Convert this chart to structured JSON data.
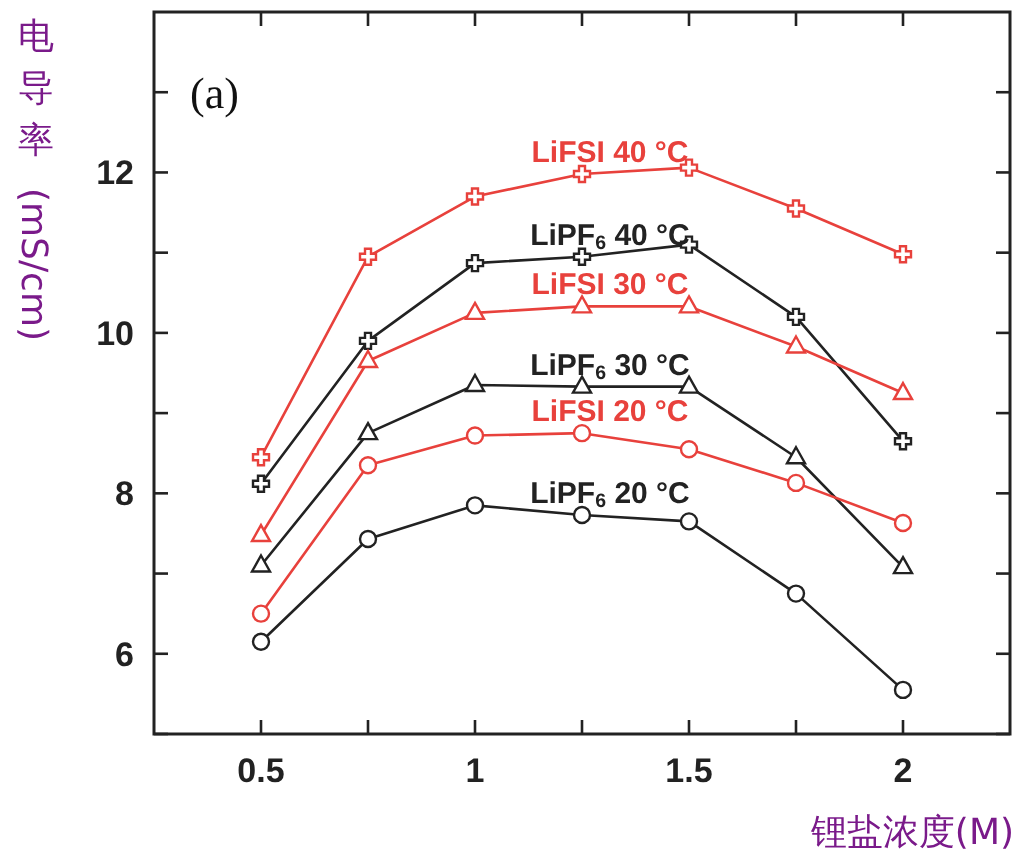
{
  "chart_data": {
    "type": "line",
    "xlabel": "锂盐浓度(M)",
    "ylabel": "电导率(mS/cm)",
    "annotations": [
      "(a)"
    ],
    "x": [
      0.5,
      0.75,
      1,
      1.25,
      1.5,
      1.75,
      2
    ],
    "xlim": [
      0.25,
      2.25
    ],
    "ylim": [
      5,
      14
    ],
    "xticks": [
      0.5,
      {
        "value": 0.75,
        "label": null
      },
      1,
      {
        "value": 1.25,
        "label": null
      },
      1.5,
      {
        "value": 1.75,
        "label": null
      },
      2
    ],
    "yticks": [
      {
        "value": 5,
        "label": null
      },
      6,
      {
        "value": 7,
        "label": null
      },
      8,
      {
        "value": 9,
        "label": null
      },
      10,
      {
        "value": 11,
        "label": null
      },
      12,
      {
        "value": 13,
        "label": null
      }
    ],
    "grid": false,
    "legend": false,
    "line_style": "solid",
    "series": [
      {
        "name": "LiFSI 40 °C",
        "color": "#e8413c",
        "marker": "cross",
        "values": [
          8.45,
          10.95,
          11.7,
          11.98,
          12.06,
          11.55,
          10.98
        ]
      },
      {
        "name": "LiPF$_{6}$ 40 °C",
        "color": "#222222",
        "marker": "cross",
        "values": [
          8.12,
          9.9,
          10.87,
          10.95,
          11.1,
          10.2,
          8.65
        ]
      },
      {
        "name": "LiFSI 30 °C",
        "color": "#e8413c",
        "marker": "triangle",
        "values": [
          7.48,
          9.65,
          10.25,
          10.33,
          10.33,
          9.83,
          9.25
        ]
      },
      {
        "name": "LiPF$_{6}$ 30 °C",
        "color": "#222222",
        "marker": "triangle",
        "values": [
          7.1,
          8.75,
          9.35,
          9.33,
          9.33,
          8.45,
          7.08
        ]
      },
      {
        "name": "LiFSI 20 °C",
        "color": "#e8413c",
        "marker": "circle",
        "values": [
          6.5,
          8.35,
          8.72,
          8.75,
          8.55,
          8.13,
          7.63
        ]
      },
      {
        "name": "LiPF$_{6}$ 20 °C",
        "color": "#222222",
        "marker": "circle",
        "values": [
          6.15,
          7.43,
          7.85,
          7.73,
          7.65,
          6.75,
          5.55
        ]
      }
    ]
  }
}
